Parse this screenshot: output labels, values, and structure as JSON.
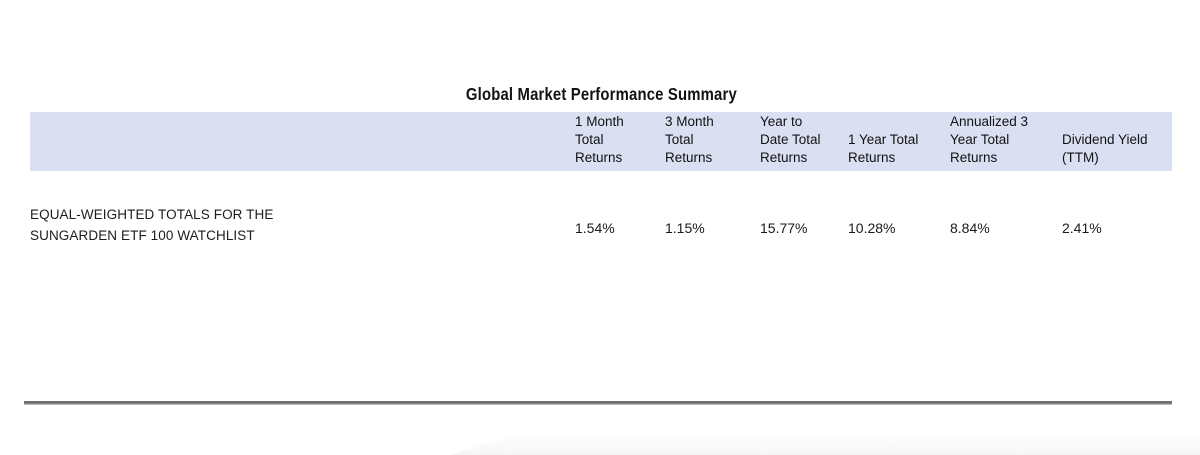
{
  "report": {
    "title": "Global Market Performance Summary"
  },
  "table": {
    "headers": [
      "1 Month\nTotal\nReturns",
      "3 Month\nTotal\nReturns",
      "Year to\nDate Total\nReturns",
      "1 Year Total\nReturns",
      "Annualized 3\nYear Total\nReturns",
      "Dividend Yield\n(TTM)"
    ],
    "row": {
      "label": "EQUAL-WEIGHTED TOTALS FOR THE\nSUNGARDEN ETF 100 WATCHLIST",
      "values": [
        "1.54%",
        "1.15%",
        "15.77%",
        "10.28%",
        "8.84%",
        "2.41%"
      ]
    }
  },
  "colors": {
    "header_bg": "#dae0f2",
    "rule": "#6f6f6f"
  }
}
